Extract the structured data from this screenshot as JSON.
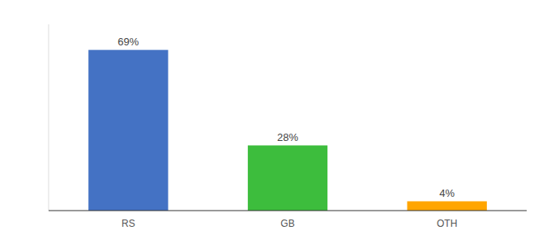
{
  "chart_data": {
    "type": "bar",
    "categories": [
      "RS",
      "GB",
      "OTH"
    ],
    "values": [
      69,
      28,
      4
    ],
    "colors": [
      "#4472C4",
      "#3DBD3D",
      "#FFA500"
    ],
    "value_labels": [
      "69%",
      "28%",
      "4%"
    ],
    "data_labels": true,
    "ylim": [
      0,
      80
    ],
    "tick_labels": "x",
    "grid": false
  }
}
